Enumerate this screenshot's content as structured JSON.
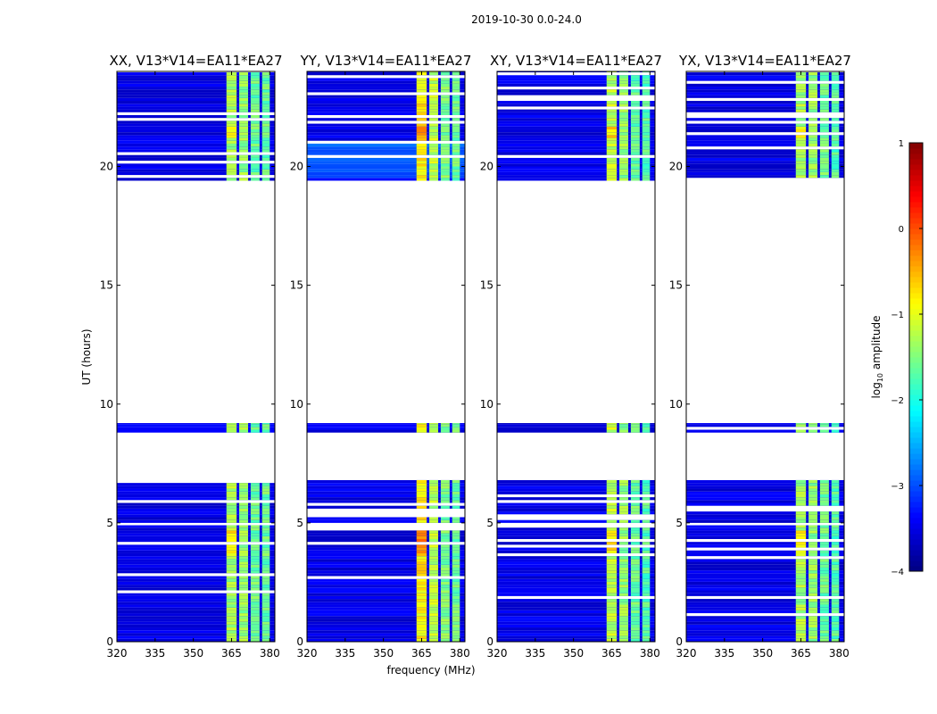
{
  "figure": {
    "suptitle": "2019-10-30 0.0-24.0",
    "xlabel": "frequency (MHz)",
    "ylabel": "UT (hours)",
    "colorbar_label": "log",
    "colorbar_label_sub": "10",
    "colorbar_label_suffix": " amplitude"
  },
  "chart_data": {
    "type": "heatmap",
    "panels": [
      {
        "title": "XX, V13*V14=EA11*EA27",
        "pol": "XX"
      },
      {
        "title": "YY, V13*V14=EA11*EA27",
        "pol": "YY"
      },
      {
        "title": "XY, V13*V14=EA11*EA27",
        "pol": "XY"
      },
      {
        "title": "YX, V13*V14=EA11*EA27",
        "pol": "YX"
      }
    ],
    "xlim": [
      320,
      382
    ],
    "xticks": [
      320,
      335,
      350,
      365,
      380
    ],
    "ylim": [
      0,
      24
    ],
    "yticks": [
      0,
      5,
      10,
      15,
      20
    ],
    "colorbar": {
      "cmap": "jet",
      "vmin": -4,
      "vmax": 1,
      "ticks": [
        -4,
        -3,
        -2,
        -1,
        0,
        1
      ],
      "tick_labels": [
        "−4",
        "−3",
        "−2",
        "−1",
        "0",
        "1"
      ]
    },
    "data_ut_ranges_hours": [
      [
        0,
        4.9
      ],
      [
        5.0,
        6.8
      ],
      [
        8.8,
        9.2
      ],
      [
        19.4,
        24.0
      ]
    ],
    "rfi_bands_mhz": [
      [
        363,
        367
      ],
      [
        368,
        371.5
      ],
      [
        372.5,
        376
      ],
      [
        377,
        380
      ]
    ],
    "background_level": -3.5,
    "rfi_levels": [
      {
        "pol": "XX",
        "values": [
          -1.3,
          -1.4,
          -1.6,
          -1.6
        ]
      },
      {
        "pol": "YY",
        "values": [
          -0.8,
          -1.2,
          -1.5,
          -1.6
        ]
      },
      {
        "pol": "XY",
        "values": [
          -1.2,
          -1.4,
          -1.6,
          -1.7
        ]
      },
      {
        "pol": "YX",
        "values": [
          -1.3,
          -1.4,
          -1.6,
          -1.7
        ]
      }
    ]
  }
}
